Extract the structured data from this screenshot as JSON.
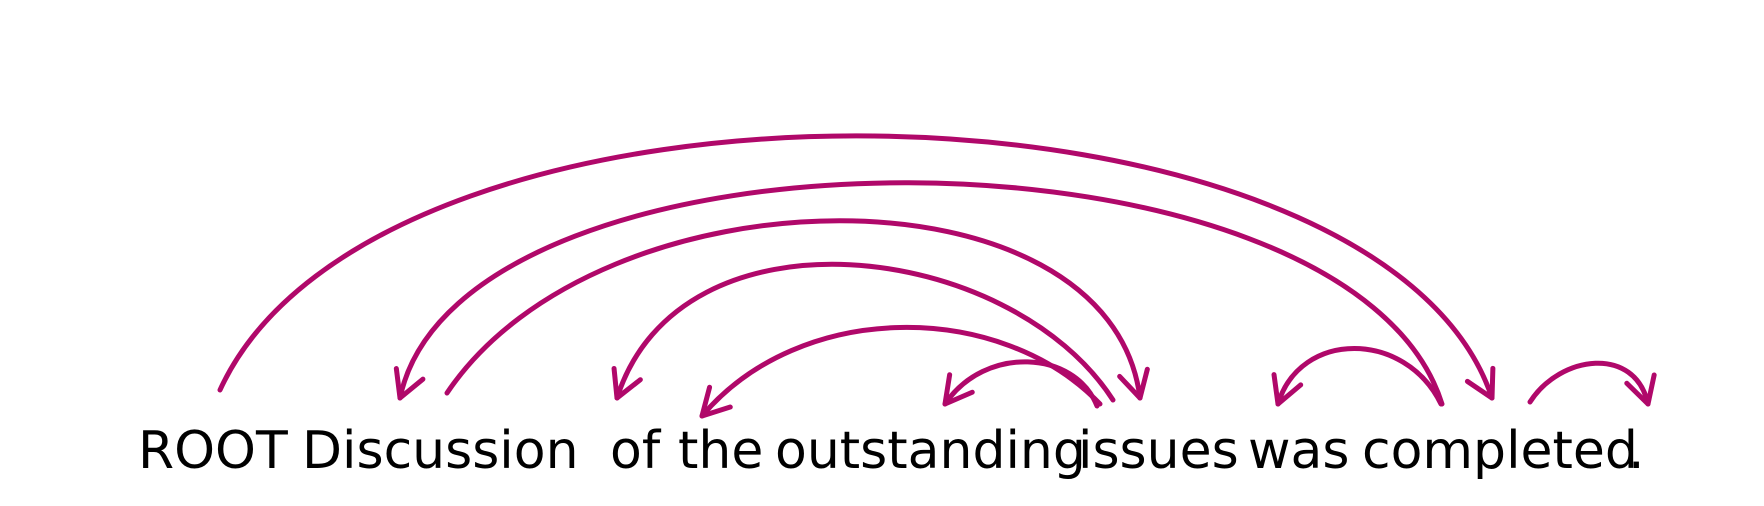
{
  "colors": {
    "arc": "#B0086A",
    "text": "#000000",
    "background": "#ffffff"
  },
  "sentence": {
    "tokens": [
      {
        "text": "ROOT"
      },
      {
        "text": "Discussion"
      },
      {
        "text": "of"
      },
      {
        "text": "the"
      },
      {
        "text": "outstanding"
      },
      {
        "text": "issues"
      },
      {
        "text": "was"
      },
      {
        "text": "completed"
      },
      {
        "text": "."
      }
    ]
  },
  "arcs": [
    {
      "from": 0,
      "to": 7
    },
    {
      "from": 7,
      "to": 1
    },
    {
      "from": 1,
      "to": 5
    },
    {
      "from": 5,
      "to": 2
    },
    {
      "from": 5,
      "to": 3
    },
    {
      "from": 5,
      "to": 4
    },
    {
      "from": 7,
      "to": 6
    },
    {
      "from": 7,
      "to": 8
    }
  ]
}
